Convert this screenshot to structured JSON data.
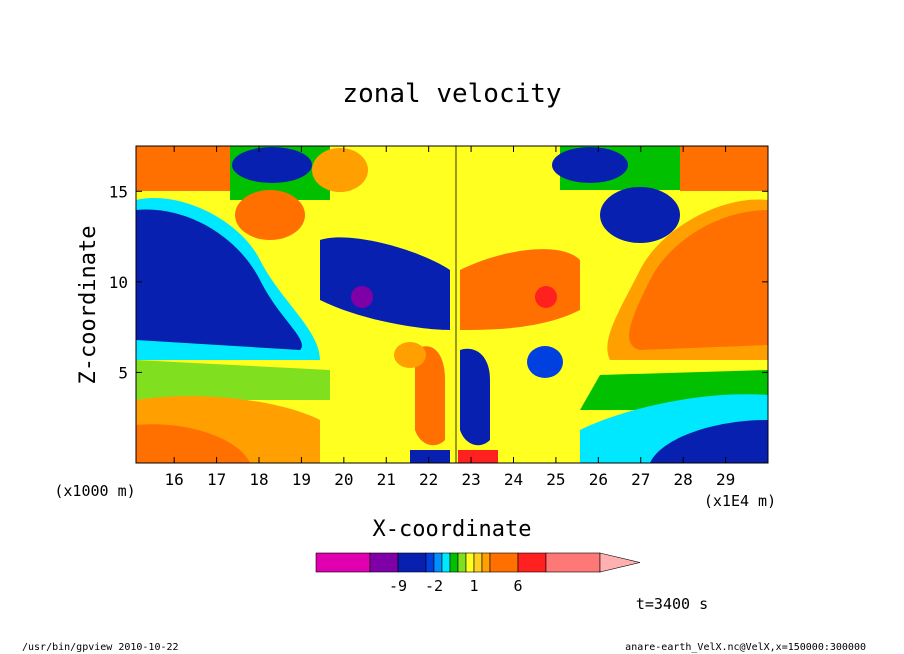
{
  "chart_data": {
    "type": "heatmap",
    "title": "zonal velocity",
    "xlabel": "X-coordinate",
    "ylabel": "Z-coordinate",
    "x_scale_note": "(x1E4 m)",
    "y_scale_note": "(x1000 m)",
    "x_ticks": [
      16,
      17,
      18,
      19,
      20,
      21,
      22,
      23,
      24,
      25,
      26,
      27,
      28,
      29
    ],
    "y_ticks": [
      5,
      10,
      15
    ],
    "xlim": [
      15.1,
      30
    ],
    "ylim": [
      0,
      17.5
    ],
    "colorbar": {
      "levels": [
        -9,
        -2,
        1,
        6
      ],
      "level_labels": [
        "-9",
        "-2",
        "1",
        "6"
      ],
      "colors": [
        "#e000b0",
        "#8000a8",
        "#0820b0",
        "#0040e0",
        "#0090ff",
        "#00e8ff",
        "#00c000",
        "#80e020",
        "#ffff20",
        "#ffd020",
        "#ffa000",
        "#ff7000",
        "#ff2020",
        "#ff7878",
        "#ffb0b0"
      ]
    },
    "annotation": "t=3400 s"
  },
  "footer": {
    "left": "/usr/bin/gpview   2010-10-22",
    "right": "anare-earth_VelX.nc@VelX,x=150000:300000"
  },
  "regions_note": "left half mostly negative (blue) at mid levels, right half positive (orange); symmetric opposite-signed pattern around x=22.6"
}
